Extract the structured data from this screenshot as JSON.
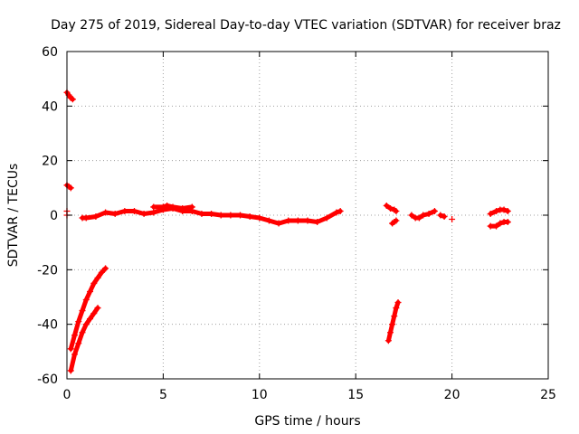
{
  "chart_data": {
    "type": "scatter",
    "title": "Day 275 of 2019, Sidereal Day-to-day VTEC variation (SDTVAR) for receiver braz",
    "xlabel": "GPS time / hours",
    "ylabel": "SDTVAR / TECUs",
    "xlim": [
      0,
      25
    ],
    "ylim": [
      -60,
      60
    ],
    "xticks": [
      0,
      5,
      10,
      15,
      20,
      25
    ],
    "yticks": [
      -60,
      -40,
      -20,
      0,
      20,
      40,
      60
    ],
    "xtick_labels": [
      "0",
      "5",
      "10",
      "15",
      "20",
      "25"
    ],
    "ytick_labels": [
      "-60",
      "-40",
      "-20",
      "0",
      "20",
      "40",
      "60"
    ],
    "grid": true,
    "marker": "+",
    "series_color": "#ff0000",
    "segments": [
      {
        "x": [
          0.0,
          0.1,
          0.2,
          0.3
        ],
        "y": [
          45,
          44,
          43,
          42.5
        ]
      },
      {
        "x": [
          0.0,
          0.1,
          0.2
        ],
        "y": [
          11,
          10.5,
          10
        ]
      },
      {
        "x": [
          0.0
        ],
        "y": [
          1.5
        ]
      },
      {
        "x": [
          0.0
        ],
        "y": [
          0
        ]
      },
      {
        "x": [
          0.2,
          0.4,
          0.6,
          0.8,
          1.0,
          1.2,
          1.4,
          1.6,
          1.8,
          2.0
        ],
        "y": [
          -49,
          -44,
          -39,
          -35,
          -31,
          -28,
          -25,
          -23,
          -21,
          -19.5
        ]
      },
      {
        "x": [
          0.2,
          0.4,
          0.6,
          0.8,
          1.0,
          1.2,
          1.4,
          1.6
        ],
        "y": [
          -57,
          -51,
          -47,
          -43,
          -40,
          -38,
          -36,
          -34
        ]
      },
      {
        "x": [
          0.8,
          1.0,
          1.5,
          2.0,
          2.5,
          3.0,
          3.5,
          4.0,
          4.5,
          5.0,
          5.5,
          6.0,
          6.5,
          7.0,
          7.5,
          8.0,
          8.5,
          9.0,
          9.5,
          10.0,
          10.5,
          11.0,
          11.5,
          12.0,
          12.5,
          13.0,
          13.5,
          14.0,
          14.2
        ],
        "y": [
          -1,
          -1,
          -0.5,
          1,
          0.5,
          1.5,
          1.5,
          0.5,
          1,
          2,
          2.5,
          1.5,
          1.5,
          0.5,
          0.5,
          0,
          0,
          0,
          -0.5,
          -1,
          -2,
          -3,
          -2,
          -2,
          -2,
          -2.5,
          -1,
          1,
          1.5
        ]
      },
      {
        "x": [
          4.5,
          5.0,
          5.2,
          5.5,
          6.0,
          6.5
        ],
        "y": [
          3,
          3,
          3.5,
          3,
          2.5,
          3
        ]
      },
      {
        "x": [
          16.7,
          16.8,
          16.9,
          17.0,
          17.1,
          17.2
        ],
        "y": [
          -46,
          -43,
          -40,
          -37,
          -34,
          -32
        ]
      },
      {
        "x": [
          16.6,
          16.8,
          17.0,
          17.1
        ],
        "y": [
          3.5,
          2.5,
          2,
          1.5
        ]
      },
      {
        "x": [
          16.9,
          17.0,
          17.1
        ],
        "y": [
          -3,
          -2.5,
          -2
        ]
      },
      {
        "x": [
          17.9,
          18.1,
          18.3,
          18.5,
          18.8,
          19.1
        ],
        "y": [
          0,
          -1,
          -1,
          0,
          0.5,
          1.5
        ]
      },
      {
        "x": [
          19.4,
          19.6
        ],
        "y": [
          0,
          -0.5
        ]
      },
      {
        "x": [
          20.0
        ],
        "y": [
          -1.5
        ]
      },
      {
        "x": [
          22.0,
          22.3,
          22.5,
          22.7,
          22.9
        ],
        "y": [
          -4,
          -4,
          -3,
          -2.5,
          -2.5
        ]
      },
      {
        "x": [
          22.0,
          22.3,
          22.5,
          22.7,
          22.9
        ],
        "y": [
          0.5,
          1.5,
          2,
          2,
          1.5
        ]
      }
    ]
  }
}
